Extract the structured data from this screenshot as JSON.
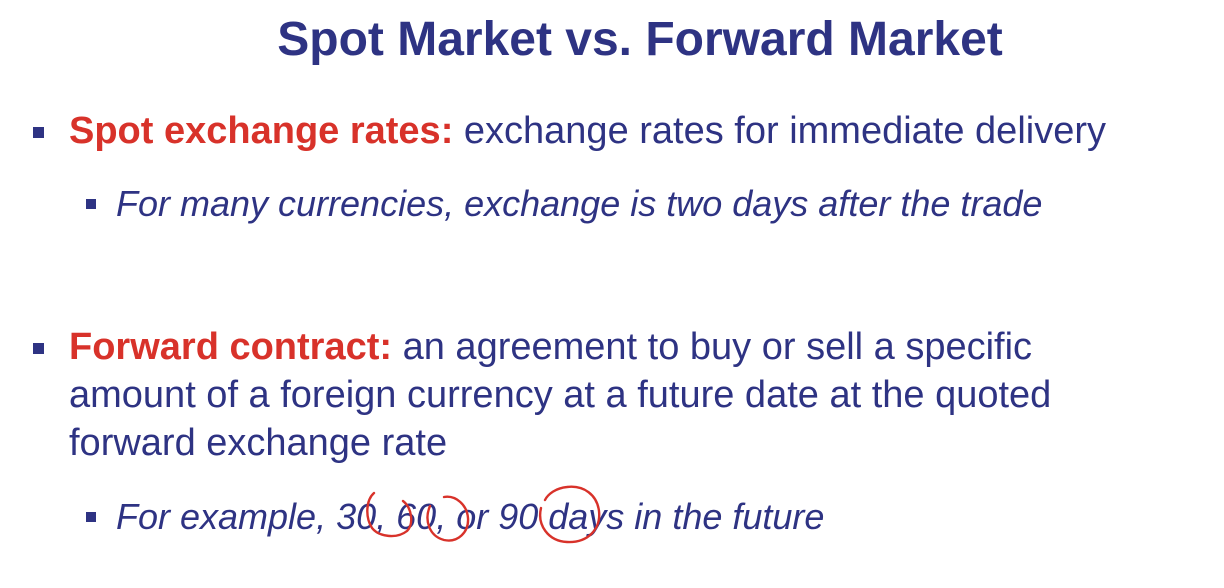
{
  "title": "Spot Market vs. Forward Market",
  "bullets": {
    "spot": {
      "term": "Spot exchange rates:",
      "text": " exchange rates for immediate delivery"
    },
    "spot_sub": {
      "text": "For many currencies, exchange is two days after the trade"
    },
    "forward": {
      "term": "Forward contract:",
      "line1": " an agreement to buy or sell a specific",
      "line2": "amount of a foreign currency at a future date at the quoted",
      "line3": "forward exchange rate"
    },
    "forward_sub": {
      "prefix": "For example, ",
      "n1": "30",
      "sep1": ", ",
      "n2": "60",
      "sep2": ", or ",
      "n3": "90",
      "suffix": " days in the future"
    }
  },
  "colors": {
    "text": "#2e3383",
    "term": "#d8322a",
    "annotation": "#d8322a"
  }
}
